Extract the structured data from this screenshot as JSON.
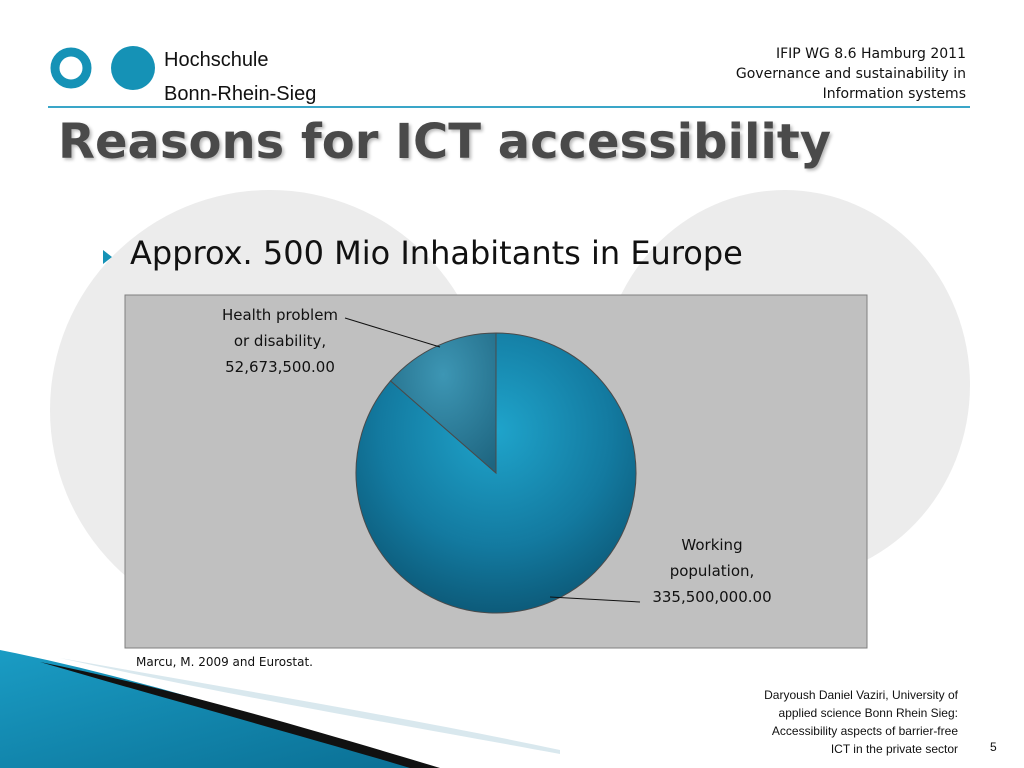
{
  "header": {
    "logo_text_line1": "Hochschule",
    "logo_text_line2": "Bonn-Rhein-Sieg",
    "conference_line1": "IFIP WG 8.6 Hamburg 2011",
    "conference_line2": "Governance and sustainability in",
    "conference_line3": "Information systems"
  },
  "title": "Reasons for ICT accessibility",
  "bullet": "Approx. 500 Mio Inhabitants in Europe",
  "chart_data": {
    "type": "pie",
    "categories": [
      "Working population",
      "Health problem or disability"
    ],
    "values": [
      335500000,
      52673500
    ],
    "labels": [
      [
        "Working",
        "population,",
        "335,500,000.00"
      ],
      [
        "Health problem",
        "or disability,",
        "52,673,500.00"
      ]
    ],
    "colors": [
      "#137aa0",
      "#2b7c98"
    ],
    "chart_background": "#c0c0c0"
  },
  "source_note": "Marcu, M. 2009 and Eurostat.",
  "footer": {
    "author_lines": [
      "Daryoush Daniel Vaziri, University of",
      "applied science Bonn Rhein Sieg:",
      "Accessibility aspects of barrier-free",
      "ICT in the private sector"
    ],
    "slide_number": "5"
  },
  "colors": {
    "accent": "#1592b6",
    "title": "#4a4a4a",
    "rule": "#3aa6c8"
  }
}
